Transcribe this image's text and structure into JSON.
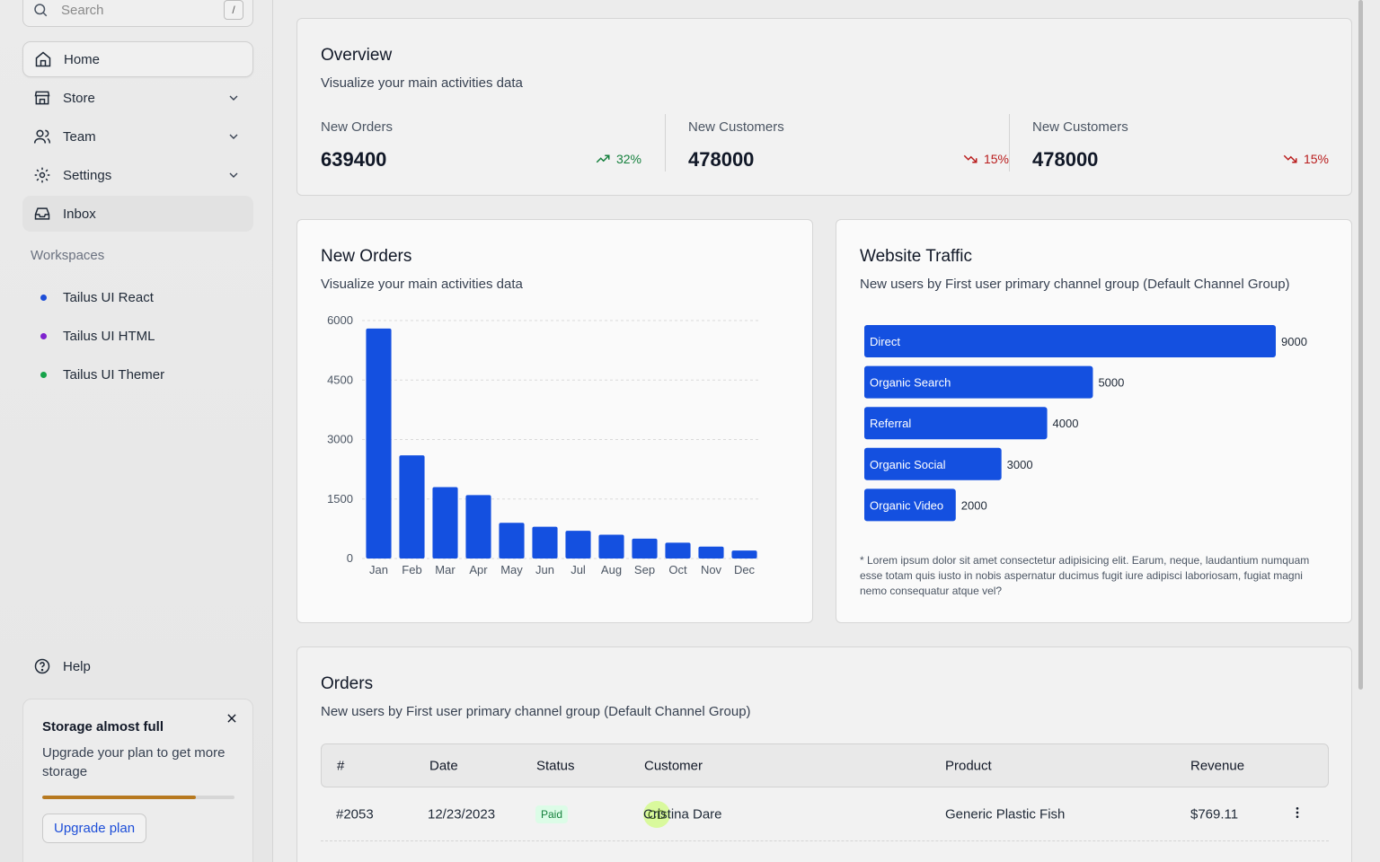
{
  "sidebar": {
    "search_placeholder": "Search",
    "search_shortcut": "/",
    "nav": [
      {
        "label": "Home"
      },
      {
        "label": "Store"
      },
      {
        "label": "Team"
      },
      {
        "label": "Settings"
      },
      {
        "label": "Inbox"
      }
    ],
    "workspaces_title": "Workspaces",
    "workspaces": [
      {
        "label": "Tailus UI React",
        "color": "#1d4ed8"
      },
      {
        "label": "Tailus UI HTML",
        "color": "#7e22ce"
      },
      {
        "label": "Tailus UI Themer",
        "color": "#16a34a"
      }
    ],
    "help_label": "Help",
    "storage": {
      "title": "Storage almost full",
      "text": "Upgrade your plan to get more storage",
      "progress": 0.8,
      "button": "Upgrade plan"
    }
  },
  "overview": {
    "title": "Overview",
    "subtitle": "Visualize your main activities data",
    "stats": [
      {
        "label": "New Orders",
        "value": "639400",
        "change": "32%",
        "trend": "up"
      },
      {
        "label": "New Customers",
        "value": "478000",
        "change": "15%",
        "trend": "down"
      },
      {
        "label": "New Customers",
        "value": "478000",
        "change": "15%",
        "trend": "down"
      }
    ]
  },
  "orders_chart": {
    "title": "New Orders",
    "subtitle": "Visualize your main activities data"
  },
  "traffic": {
    "title": "Website Traffic",
    "subtitle": "New users by First user primary channel group (Default Channel Group)",
    "footnote": "* Lorem ipsum dolor sit amet consectetur adipisicing elit. Earum, neque, laudantium numquam esse totam quis iusto in nobis aspernatur ducimus fugit iure adipisci laboriosam, fugiat magni nemo consequatur atque vel?"
  },
  "chart_data": [
    {
      "type": "bar",
      "categories": [
        "Jan",
        "Feb",
        "Mar",
        "Apr",
        "May",
        "Jun",
        "Jul",
        "Aug",
        "Sep",
        "Oct",
        "Nov",
        "Dec"
      ],
      "values": [
        5800,
        2600,
        1800,
        1600,
        900,
        800,
        700,
        600,
        500,
        400,
        300,
        200
      ],
      "yticks": [
        0,
        1500,
        3000,
        4500,
        6000
      ],
      "ylim": [
        0,
        6000
      ],
      "color": "#1450e0",
      "grid": true
    },
    {
      "type": "bar",
      "orientation": "horizontal",
      "categories": [
        "Direct",
        "Organic Search",
        "Referral",
        "Organic Social",
        "Organic Video"
      ],
      "values": [
        9000,
        5000,
        4000,
        3000,
        2000
      ],
      "xlim": [
        0,
        9000
      ],
      "color": "#1450e0",
      "grid": false
    }
  ],
  "orders_table": {
    "title": "Orders",
    "subtitle": "New users by First user primary channel group (Default Channel Group)",
    "columns": [
      "#",
      "Date",
      "Status",
      "Customer",
      "Product",
      "Revenue"
    ],
    "rows": [
      {
        "id": "#2053",
        "date": "12/23/2023",
        "status": "Paid",
        "initials": "CD",
        "customer": "Cristina Dare",
        "product": "Generic Plastic Fish",
        "revenue": "$769.11"
      }
    ]
  }
}
